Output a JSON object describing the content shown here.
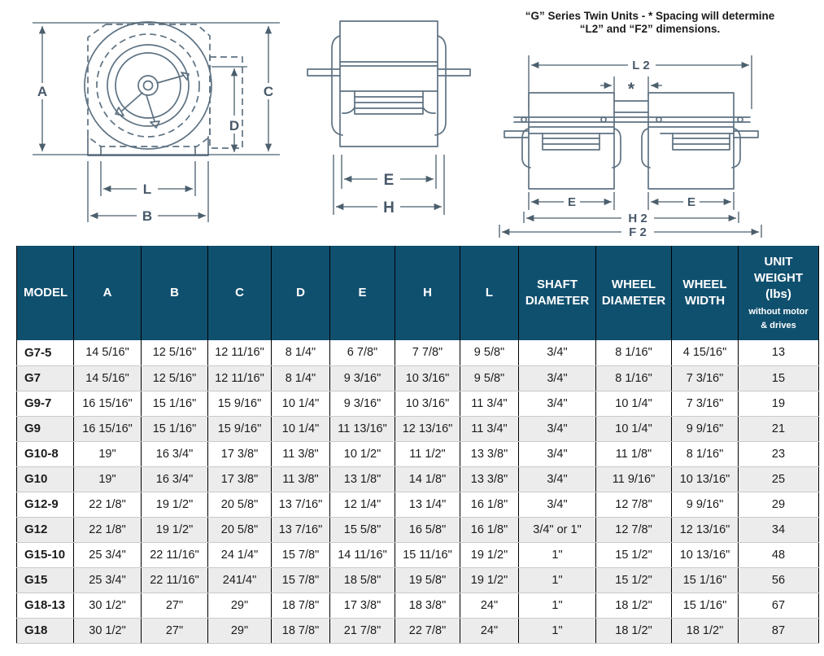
{
  "diagrams": {
    "side_view": {
      "labels": {
        "A": "A",
        "B": "B",
        "C": "C",
        "D": "D",
        "L": "L"
      }
    },
    "front_view": {
      "labels": {
        "E": "E",
        "H": "H"
      }
    },
    "twin_view": {
      "title_line1": "“G” Series Twin Units - * Spacing  will determine",
      "title_line2": "“L2” and “F2” dimensions.",
      "labels": {
        "L2": "L 2",
        "spacing": "*",
        "E_left": "E",
        "E_right": "E",
        "H2": "H 2",
        "F2": "F 2"
      }
    }
  },
  "table": {
    "columns": [
      {
        "label": "MODEL"
      },
      {
        "label": "A"
      },
      {
        "label": "B"
      },
      {
        "label": "C"
      },
      {
        "label": "D"
      },
      {
        "label": "E"
      },
      {
        "label": "H"
      },
      {
        "label": "L"
      },
      {
        "label": "SHAFT DIAMETER"
      },
      {
        "label": "WHEEL DIAMETER"
      },
      {
        "label": "WHEEL WIDTH"
      },
      {
        "label": "UNIT WEIGHT (lbs)",
        "sublabel_line1": "without motor",
        "sublabel_line2": "& drives"
      }
    ],
    "rows": [
      {
        "model": "G7-5",
        "values": [
          "14 5/16\"",
          "12 5/16\"",
          "12 11/16\"",
          "8 1/4\"",
          "6 7/8\"",
          "7 7/8\"",
          "9 5/8\"",
          "3/4\"",
          "8 1/16\"",
          "4 15/16\"",
          "13"
        ]
      },
      {
        "model": "G7",
        "values": [
          "14 5/16\"",
          "12 5/16\"",
          "12 11/16\"",
          "8 1/4\"",
          "9 3/16\"",
          "10 3/16\"",
          "9 5/8\"",
          "3/4\"",
          "8 1/16\"",
          "7 3/16\"",
          "15"
        ]
      },
      {
        "model": "G9-7",
        "values": [
          "16 15/16\"",
          "15 1/16\"",
          "15 9/16\"",
          "10 1/4\"",
          "9 3/16\"",
          "10 3/16\"",
          "11 3/4\"",
          "3/4\"",
          "10 1/4\"",
          "7 3/16\"",
          "19"
        ]
      },
      {
        "model": "G9",
        "values": [
          "16 15/16\"",
          "15 1/16\"",
          "15 9/16\"",
          "10 1/4\"",
          "11 13/16\"",
          "12 13/16\"",
          "11 3/4\"",
          "3/4\"",
          "10 1/4\"",
          "9 9/16\"",
          "21"
        ]
      },
      {
        "model": "G10-8",
        "values": [
          "19\"",
          "16 3/4\"",
          "17 3/8\"",
          "11 3/8\"",
          "10 1/2\"",
          "11 1/2\"",
          "13 3/8\"",
          "3/4\"",
          "11 1/8\"",
          "8 1/16\"",
          "23"
        ]
      },
      {
        "model": "G10",
        "values": [
          "19\"",
          "16 3/4\"",
          "17 3/8\"",
          "11 3/8\"",
          "13 1/8\"",
          "14 1/8\"",
          "13 3/8\"",
          "3/4\"",
          "11 9/16\"",
          "10 13/16\"",
          "25"
        ]
      },
      {
        "model": "G12-9",
        "values": [
          "22 1/8\"",
          "19 1/2\"",
          "20 5/8\"",
          "13 7/16\"",
          "12 1/4\"",
          "13 1/4\"",
          "16 1/8\"",
          "3/4\"",
          "12 7/8\"",
          "9 9/16\"",
          "29"
        ]
      },
      {
        "model": "G12",
        "values": [
          "22 1/8\"",
          "19 1/2\"",
          "20 5/8\"",
          "13 7/16\"",
          "15 5/8\"",
          "16 5/8\"",
          "16 1/8\"",
          "3/4\" or 1\"",
          "12 7/8\"",
          "12 13/16\"",
          "34"
        ]
      },
      {
        "model": "G15-10",
        "values": [
          "25 3/4\"",
          "22 11/16\"",
          "24 1/4\"",
          "15 7/8\"",
          "14 11/16\"",
          "15 11/16\"",
          "19 1/2\"",
          "1\"",
          "15 1/2\"",
          "10 13/16\"",
          "48"
        ]
      },
      {
        "model": "G15",
        "values": [
          "25 3/4\"",
          "22 11/16\"",
          "241/4\"",
          "15 7/8\"",
          "18 5/8\"",
          "19 5/8\"",
          "19 1/2\"",
          "1\"",
          "15 1/2\"",
          "15 1/16\"",
          "56"
        ]
      },
      {
        "model": "G18-13",
        "values": [
          "30 1/2\"",
          "27\"",
          "29\"",
          "18 7/8\"",
          "17 3/8\"",
          "18 3/8\"",
          "24\"",
          "1\"",
          "18 1/2\"",
          "15 1/16\"",
          "67"
        ]
      },
      {
        "model": "G18",
        "values": [
          "30 1/2\"",
          "27\"",
          "29\"",
          "18 7/8\"",
          "21 7/8\"",
          "22 7/8\"",
          "24\"",
          "1\"",
          "18 1/2\"",
          "18 1/2\"",
          "87"
        ]
      }
    ]
  },
  "colors": {
    "header_bg": "#10506f",
    "header_text": "#ffffff",
    "row_stripe": "#ececec",
    "line_art": "#5e7282",
    "column_border": "#000000"
  }
}
